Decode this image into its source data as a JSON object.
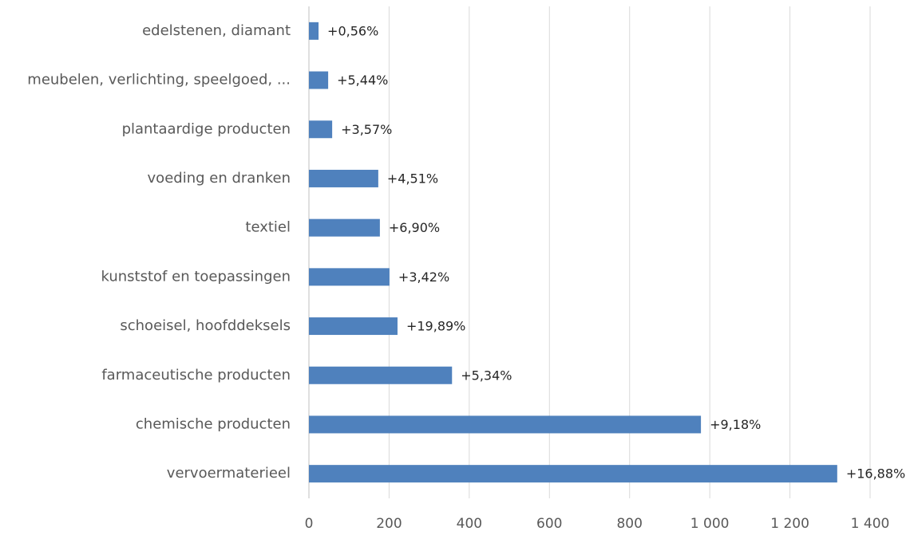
{
  "chart_data": {
    "type": "hbar",
    "categories": [
      "edelstenen, diamant",
      "meubelen, verlichting, speelgoed, ...",
      "plantaardige producten",
      "voeding en dranken",
      "textiel",
      "kunststof en toepassingen",
      "schoeisel, hoofddeksels",
      "farmaceutische producten",
      "chemische producten",
      "vervoermaterieel"
    ],
    "values": [
      24,
      48,
      58,
      173,
      177,
      201,
      221,
      357,
      978,
      1318
    ],
    "annotations": [
      "+0,56%",
      "+5,44%",
      "+3,57%",
      "+4,51%",
      "+6,90%",
      "+3,42%",
      "+19,89%",
      "+5,34%",
      "+9,18%",
      "+16,88%"
    ],
    "color": "#4f81bd",
    "xlim": [
      0,
      1400
    ],
    "xticks": [
      0,
      200,
      400,
      600,
      800,
      {
        "value": 1000,
        "label": "1 000"
      },
      {
        "value": 1200,
        "label": "1 200"
      },
      {
        "value": 1400,
        "label": "1 400"
      }
    ],
    "grid": true
  }
}
